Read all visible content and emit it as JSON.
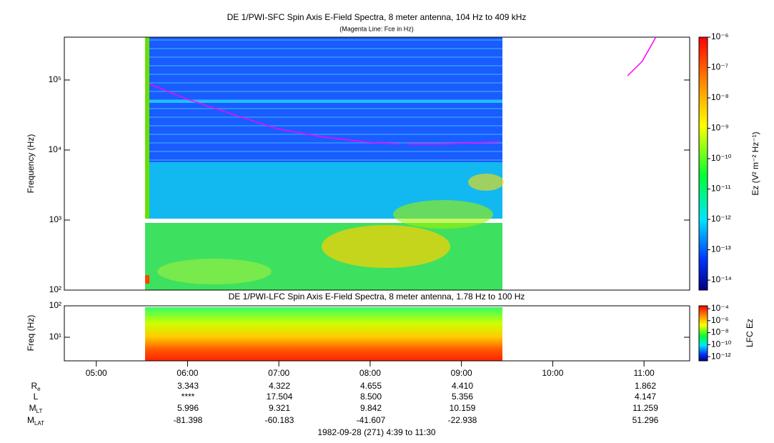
{
  "chart_data": [
    {
      "type": "spectrogram",
      "title": "DE 1/PWI-SFC  Spin Axis E-Field Spectra, 8 meter antenna, 104 Hz to 409 kHz",
      "subtitle": "(Magenta Line: Fce in Hz)",
      "y_label": "Frequency (Hz)",
      "log_y": true,
      "ylim": [
        100,
        409000
      ],
      "yticks": [
        {
          "value": 100,
          "label": "10²"
        },
        {
          "value": 1000,
          "label": "10³"
        },
        {
          "value": 10000,
          "label": "10⁴"
        },
        {
          "value": 100000,
          "label": "10⁵"
        }
      ],
      "xlim": [
        4.65,
        11.5
      ],
      "series": [
        {
          "color": "#ff00ff",
          "x": [
            5.59,
            5.98,
            6.45,
            6.99,
            7.46,
            8.01,
            8.32,
            null,
            8.4,
            8.79,
            9.42,
            null,
            10.82,
            10.98,
            11.13
          ],
          "values": [
            86700,
            54100,
            33800,
            20000,
            15500,
            12800,
            12200,
            null,
            12200,
            12200,
            13100,
            null,
            115000,
            185000,
            409000
          ]
        }
      ],
      "colorbar": {
        "label": "Ez (V² m⁻² Hz⁻¹)",
        "log": true,
        "lim": [
          4.7e-15,
          1e-06
        ],
        "ticks": [
          {
            "value": 1e-06,
            "label": "10⁻⁶"
          },
          {
            "value": 1e-07,
            "label": "10⁻⁷"
          },
          {
            "value": 1e-08,
            "label": "10⁻⁸"
          },
          {
            "value": 1e-09,
            "label": "10⁻⁹"
          },
          {
            "value": 1e-10,
            "label": "10⁻¹⁰"
          },
          {
            "value": 1e-11,
            "label": "10⁻¹¹"
          },
          {
            "value": 1e-12,
            "label": "10⁻¹²"
          },
          {
            "value": 1e-13,
            "label": "10⁻¹³"
          },
          {
            "value": 1e-14,
            "label": "10⁻¹⁴"
          }
        ]
      }
    },
    {
      "type": "spectrogram",
      "title": "DE 1/PWI-LFC  Spin Axis E-Field Spectra, 8 meter antenna, 1.78 Hz to 100 Hz",
      "y_label": "Freq (Hz)",
      "log_y": true,
      "ylim": [
        1.78,
        100
      ],
      "yticks": [
        {
          "value": 10,
          "label": "10¹"
        },
        {
          "value": 100,
          "label": "10²"
        }
      ],
      "xlim": [
        4.65,
        11.5
      ],
      "xticks": [
        {
          "value": 5,
          "label": "05:00"
        },
        {
          "value": 6,
          "label": "06:00"
        },
        {
          "value": 7,
          "label": "07:00"
        },
        {
          "value": 8,
          "label": "08:00"
        },
        {
          "value": 9,
          "label": "09:00"
        },
        {
          "value": 10,
          "label": "10:00"
        },
        {
          "value": 11,
          "label": "11:00"
        }
      ],
      "colorbar": {
        "label": "LFC Ez",
        "log": true,
        "lim": [
          2e-13,
          0.0003
        ],
        "ticks": [
          {
            "value": 0.0001,
            "label": "10⁻⁴"
          },
          {
            "value": 1e-06,
            "label": "10⁻⁶"
          },
          {
            "value": 1e-08,
            "label": "10⁻⁸"
          },
          {
            "value": 1e-10,
            "label": "10⁻¹⁰"
          },
          {
            "value": 1e-12,
            "label": "10⁻¹²"
          }
        ]
      }
    }
  ],
  "ephemeris": [
    {
      "label": "R",
      "sub": "e",
      "values": [
        "3.343",
        "4.322",
        "4.655",
        "4.410",
        "1.862"
      ]
    },
    {
      "label": "L",
      "sub": "",
      "values": [
        "****",
        "17.504",
        "8.500",
        "5.356",
        "4.147"
      ]
    },
    {
      "label": "M",
      "sub": "LT",
      "values": [
        "5.996",
        "9.321",
        "9.842",
        "10.159",
        "11.259"
      ]
    },
    {
      "label": "M",
      "sub": "LAT",
      "values": [
        "-81.398",
        "-60.183",
        "-41.607",
        "-22.938",
        "51.296"
      ]
    }
  ],
  "footer": "1982-09-28 (271) 4:39 to 11:30"
}
